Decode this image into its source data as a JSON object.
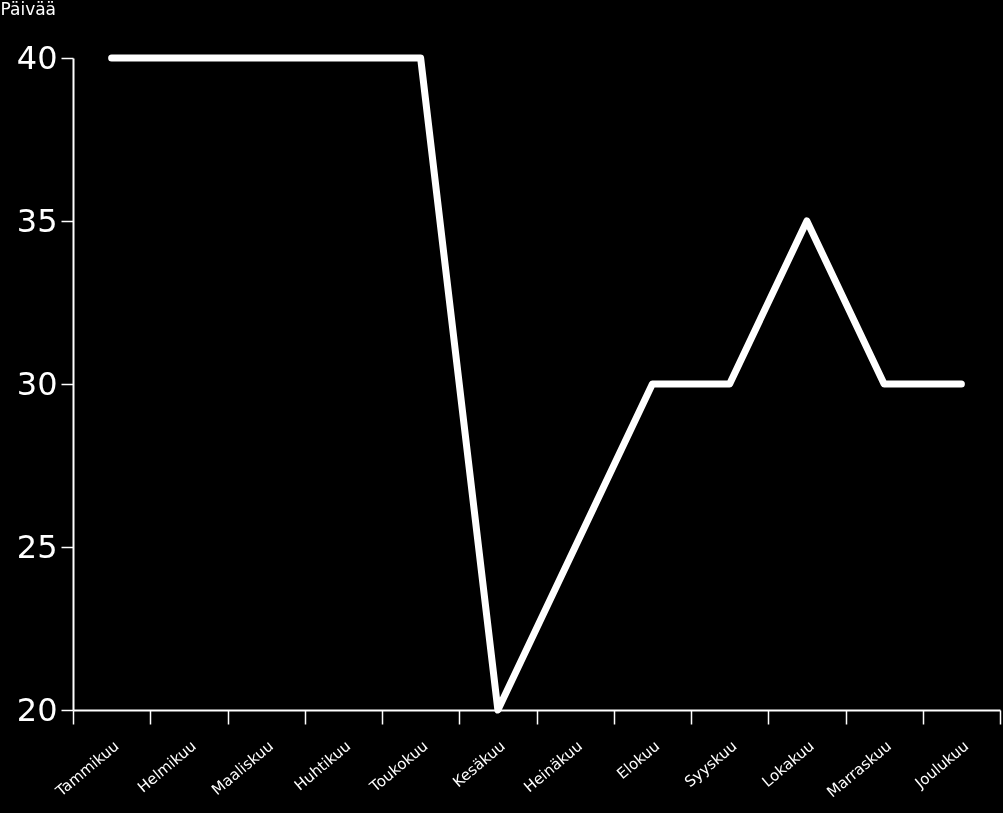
{
  "chart_data": {
    "type": "line",
    "ylabel": "Päivää",
    "categories": [
      "Tammikuu",
      "Helmikuu",
      "Maaliskuu",
      "Huhtikuu",
      "Toukokuu",
      "Kesäkuu",
      "Heinäkuu",
      "Elokuu",
      "Syyskuu",
      "Lokakuu",
      "Marraskuu",
      "Joulukuu"
    ],
    "values": [
      40,
      40,
      40,
      40,
      40,
      20,
      25,
      30,
      30,
      35,
      30,
      30
    ],
    "color": "#ffffff",
    "ylim": [
      20,
      40
    ],
    "yticks": [
      20,
      25,
      30,
      35,
      40
    ],
    "grid": false,
    "line_style": "solid"
  }
}
